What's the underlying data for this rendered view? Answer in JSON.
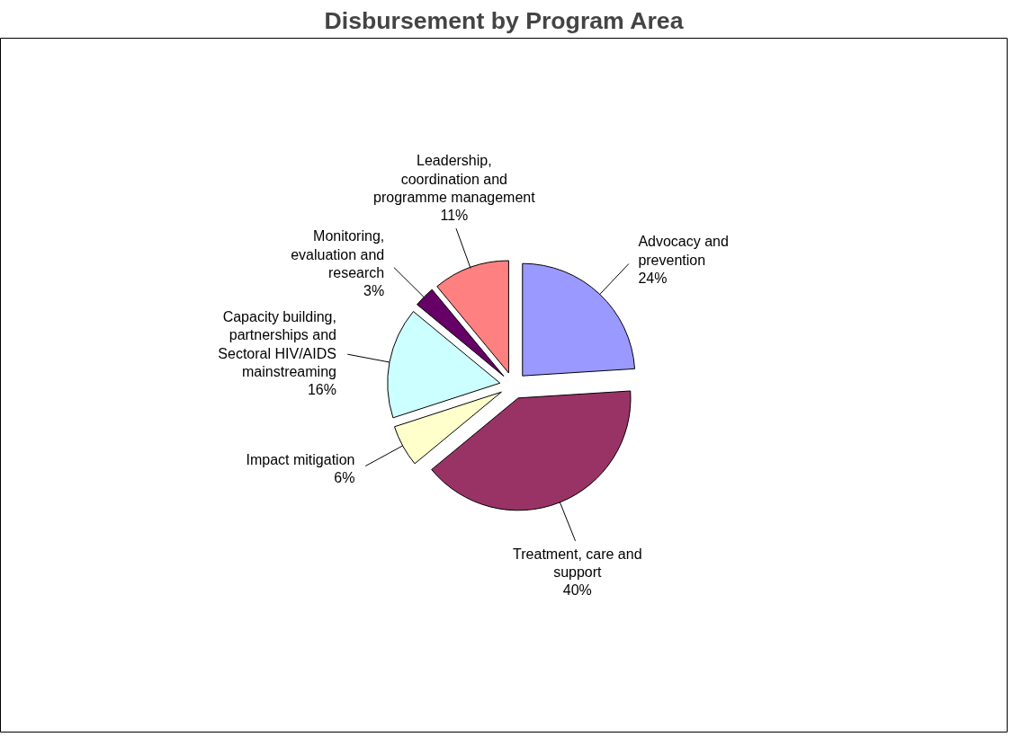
{
  "chart_data": {
    "type": "pie",
    "title": "Disbursement by Program Area",
    "categories": [
      "Advocacy and prevention",
      "Treatment, care and support",
      "Impact mitigation",
      "Capacity building, partnerships and Sectoral HIV/AIDS mainstreaming",
      "Monitoring, evaluation and research",
      "Leadership, coordination and programme management"
    ],
    "values": [
      24,
      40,
      6,
      16,
      3,
      11
    ],
    "value_labels": [
      "24%",
      "40%",
      "6%",
      "16%",
      "3%",
      "11%"
    ],
    "colors": [
      "#9999ff",
      "#993366",
      "#ffffcc",
      "#ccffff",
      "#660066",
      "#ff8080"
    ]
  }
}
